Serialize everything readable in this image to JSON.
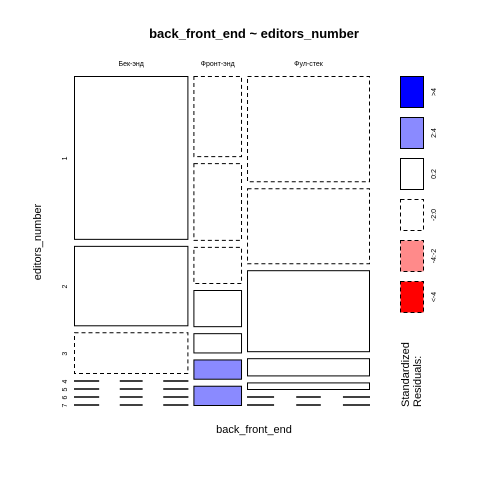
{
  "chart_data": {
    "type": "mosaic",
    "title": "back_front_end ~ editors_number",
    "xlabel": "back_front_end",
    "ylabel": "editors_number",
    "columns": [
      "Бек-энд",
      "Фронт-энд",
      "Фул-стек"
    ],
    "rows": [
      "1",
      "2",
      "3",
      "4",
      "5",
      "6",
      "7"
    ],
    "column_shares": [
      0.4,
      0.17,
      0.43
    ],
    "cells": [
      {
        "column": "Бек-энд",
        "row": "1",
        "share": 0.55,
        "residual": "0:2"
      },
      {
        "column": "Бек-энд",
        "row": "2",
        "share": 0.27,
        "residual": "0:2"
      },
      {
        "column": "Бек-энд",
        "row": "3",
        "share": 0.14,
        "residual": "-2:0"
      },
      {
        "column": "Бек-энд",
        "row": "4",
        "share": 0,
        "residual": "-2:0"
      },
      {
        "column": "Бек-энд",
        "row": "5",
        "share": 0,
        "residual": "-2:0"
      },
      {
        "column": "Бек-энд",
        "row": "6",
        "share": 0,
        "residual": "-2:0"
      },
      {
        "column": "Бек-энд",
        "row": "7",
        "share": 0,
        "residual": "-2:0"
      },
      {
        "column": "Фронт-энд",
        "row": "1",
        "share": 0.24,
        "residual": "-2:0"
      },
      {
        "column": "Фронт-энд",
        "row": "2",
        "share": 0.23,
        "residual": "-2:0"
      },
      {
        "column": "Фронт-энд",
        "row": "3",
        "share": 0.11,
        "residual": "-2:0"
      },
      {
        "column": "Фронт-энд",
        "row": "4",
        "share": 0.11,
        "residual": "0:2"
      },
      {
        "column": "Фронт-энд",
        "row": "5",
        "share": 0.06,
        "residual": "0:2"
      },
      {
        "column": "Фронт-энд",
        "row": "6",
        "share": 0.06,
        "residual": "2:4"
      },
      {
        "column": "Фронт-энд",
        "row": "7",
        "share": 0.06,
        "residual": "2:4"
      },
      {
        "column": "Фул-стек",
        "row": "1",
        "share": 0.35,
        "residual": "-2:0"
      },
      {
        "column": "Фул-стек",
        "row": "2",
        "share": 0.25,
        "residual": "-2:0"
      },
      {
        "column": "Фул-стек",
        "row": "3",
        "share": 0.27,
        "residual": "0:2"
      },
      {
        "column": "Фул-стек",
        "row": "4",
        "share": 0.06,
        "residual": "0:2"
      },
      {
        "column": "Фул-стек",
        "row": "5",
        "share": 0.025,
        "residual": "0:2"
      },
      {
        "column": "Фул-стек",
        "row": "6",
        "share": 0,
        "residual": "-2:0"
      },
      {
        "column": "Фул-стек",
        "row": "7",
        "share": 0,
        "residual": "-2:0"
      }
    ],
    "legend": {
      "title": "Standardized Residuals:",
      "placement": "right",
      "entries": [
        {
          "label": ">4",
          "key": ">4",
          "fill": "#0000ff",
          "dashed": false
        },
        {
          "label": "2:4",
          "key": "2:4",
          "fill": "#8a8aff",
          "dashed": false
        },
        {
          "label": "0:2",
          "key": "0:2",
          "fill": "#ffffff",
          "dashed": false
        },
        {
          "label": "-2:0",
          "key": "-2:0",
          "fill": "#ffffff",
          "dashed": true
        },
        {
          "label": "-4:-2",
          "key": "-4:-2",
          "fill": "#ff8a8a",
          "dashed": true
        },
        {
          "label": "<-4",
          "key": "<-4",
          "fill": "#ff0000",
          "dashed": true
        }
      ]
    }
  }
}
